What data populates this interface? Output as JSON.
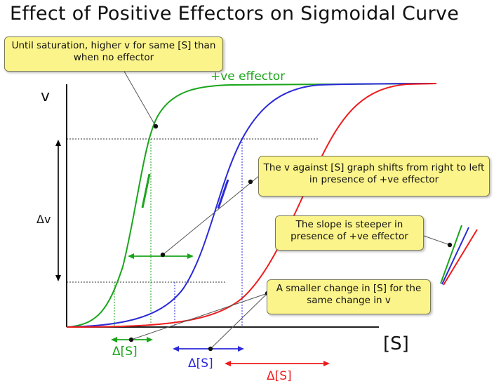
{
  "title": "Effect of Positive Effectors on Sigmoidal Curve",
  "axes": {
    "y_label": "v",
    "x_label": "[S]",
    "delta_v_label": "Δv"
  },
  "curve_label": "+ve effector",
  "delta_s_labels": {
    "green": "Δ[S]",
    "blue": "Δ[S]",
    "red": "Δ[S]"
  },
  "notes": {
    "saturation": "Until saturation, higher v for same [S] than when no effector",
    "shift": "The v against [S] graph shifts from right to left in presence of +ve effector",
    "slope": "The slope is steeper in presence of +ve effector",
    "change": "A smaller change in [S] for the same change in v"
  },
  "colors": {
    "green": "#1aa51a",
    "blue": "#2a2ad8",
    "red": "#ee1c1c",
    "note_fill": "#fbf48a"
  }
}
